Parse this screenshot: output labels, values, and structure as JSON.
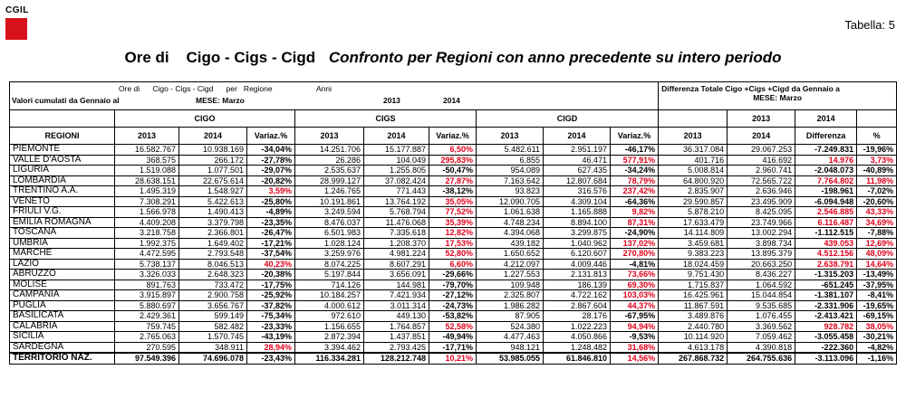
{
  "logo_text": "CGIL",
  "table_label": "Tabella: 5",
  "title_main": "Ore di    Cigo - Cigs - Cigd",
  "title_sub": "Confronto per Regioni con anno precedente su intero periodo",
  "header": {
    "line1": "Ore di      Cigo - Cigs - Cigd      per   Regione",
    "line2a": "Valori cumulati da Gennaio  al",
    "line2b": "MESE: Marzo",
    "anni": "Anni",
    "y2013": "2013",
    "y2014": "2014",
    "diff_title": "Differenza Totale Cigo +Cigs +Cigd da Gennaio a",
    "diff_mese": "MESE: Marzo",
    "regioni": "REGIONI",
    "cigo": "CIGO",
    "cigs": "CIGS",
    "cigd": "CIGD",
    "variaz": "Variaz.%",
    "differenza": "Differenza",
    "pct": "%"
  },
  "rows": [
    {
      "r": "PIEMONTE",
      "v": [
        "16.582.767",
        "10.938.169",
        "-34,04%",
        "14.251.706",
        "15.177.887",
        "6,50%",
        "5.482.611",
        "2.951.197",
        "-46,17%",
        "36.317.084",
        "29.067.253",
        "-7.249.831",
        "-19,96%"
      ]
    },
    {
      "r": "VALLE D'AOSTA",
      "v": [
        "368.575",
        "266.172",
        "-27,78%",
        "26.286",
        "104.049",
        "295,83%",
        "6.855",
        "46.471",
        "577,91%",
        "401.716",
        "416.692",
        "14.976",
        "3,73%"
      ]
    },
    {
      "r": "LIGURIA",
      "v": [
        "1.519.088",
        "1.077.501",
        "-29,07%",
        "2.535.637",
        "1.255.805",
        "-50,47%",
        "954.089",
        "627.435",
        "-34,24%",
        "5.008.814",
        "2.960.741",
        "-2.048.073",
        "-40,89%"
      ]
    },
    {
      "r": "LOMBARDIA",
      "v": [
        "28.638.151",
        "22.675.614",
        "-20,82%",
        "28.999.127",
        "37.082.424",
        "27,87%",
        "7.163.642",
        "12.807.684",
        "78,79%",
        "64.800.920",
        "72.565.722",
        "7.764.802",
        "11,98%"
      ]
    },
    {
      "r": "TRENTINO A.A.",
      "v": [
        "1.495.319",
        "1.548.927",
        "3,59%",
        "1.246.765",
        "771.443",
        "-38,12%",
        "93.823",
        "316.576",
        "237,42%",
        "2.835.907",
        "2.636.946",
        "-198.961",
        "-7,02%"
      ]
    },
    {
      "r": "VENETO",
      "v": [
        "7.308.291",
        "5.422.613",
        "-25,80%",
        "10.191.861",
        "13.764.192",
        "35,05%",
        "12.090.705",
        "4.309.104",
        "-64,36%",
        "29.590.857",
        "23.495.909",
        "-6.094.948",
        "-20,60%"
      ]
    },
    {
      "r": "FRIULI V.G.",
      "v": [
        "1.566.978",
        "1.490.413",
        "-4,89%",
        "3.249.594",
        "5.768.794",
        "77,52%",
        "1.061.638",
        "1.165.888",
        "9,82%",
        "5.878.210",
        "8.425.095",
        "2.546.885",
        "43,33%"
      ]
    },
    {
      "r": "EMILIA ROMAGNA",
      "v": [
        "4.409.208",
        "3.379.798",
        "-23,35%",
        "8.476.037",
        "11.476.068",
        "35,39%",
        "4.748.234",
        "8.894.100",
        "87,31%",
        "17.633.479",
        "23.749.966",
        "6.116.487",
        "34,69%"
      ]
    },
    {
      "r": "TOSCANA",
      "v": [
        "3.218.758",
        "2.366.801",
        "-26,47%",
        "6.501.983",
        "7.335.618",
        "12,82%",
        "4.394.068",
        "3.299.875",
        "-24,90%",
        "14.114.809",
        "13.002.294",
        "-1.112.515",
        "-7,88%"
      ]
    },
    {
      "r": "UMBRIA",
      "v": [
        "1.992.375",
        "1.649.402",
        "-17,21%",
        "1.028.124",
        "1.208.370",
        "17,53%",
        "439.182",
        "1.040.962",
        "137,02%",
        "3.459.681",
        "3.898.734",
        "439.053",
        "12,69%"
      ]
    },
    {
      "r": "MARCHE",
      "v": [
        "4.472.595",
        "2.793.548",
        "-37,54%",
        "3.259.976",
        "4.981.224",
        "52,80%",
        "1.650.652",
        "6.120.607",
        "270,80%",
        "9.383.223",
        "13.895.379",
        "4.512.156",
        "48,09%"
      ]
    },
    {
      "r": "LAZIO",
      "v": [
        "5.738.137",
        "8.046.513",
        "40,23%",
        "8.074.225",
        "8.607.291",
        "6,60%",
        "4.212.097",
        "4.009.446",
        "-4,81%",
        "18.024.459",
        "20.663.250",
        "2.638.791",
        "14,64%"
      ]
    },
    {
      "r": "ABRUZZO",
      "v": [
        "3.326.033",
        "2.648.323",
        "-20,38%",
        "5.197.844",
        "3.656.091",
        "-29,66%",
        "1.227.553",
        "2.131.813",
        "73,66%",
        "9.751.430",
        "8.436.227",
        "-1.315.203",
        "-13,49%"
      ]
    },
    {
      "r": "MOLISE",
      "v": [
        "891.763",
        "733.472",
        "-17,75%",
        "714.126",
        "144.981",
        "-79,70%",
        "109.948",
        "186.139",
        "69,30%",
        "1.715.837",
        "1.064.592",
        "-651.245",
        "-37,95%"
      ]
    },
    {
      "r": "CAMPANIA",
      "v": [
        "3.915.897",
        "2.900.758",
        "-25,92%",
        "10.184.257",
        "7.421.934",
        "-27,12%",
        "2.325.807",
        "4.722.162",
        "103,03%",
        "16.425.961",
        "15.044.854",
        "-1.381.107",
        "-8,41%"
      ]
    },
    {
      "r": "PUGLIA",
      "v": [
        "5.880.697",
        "3.656.767",
        "-37,82%",
        "4.000.612",
        "3.011.314",
        "-24,73%",
        "1.986.282",
        "2.867.604",
        "44,37%",
        "11.867.591",
        "9.535.685",
        "-2.331.906",
        "-19,65%"
      ]
    },
    {
      "r": "BASILICATA",
      "v": [
        "2.429.361",
        "599.149",
        "-75,34%",
        "972.610",
        "449.130",
        "-53,82%",
        "87.905",
        "28.176",
        "-67,95%",
        "3.489.876",
        "1.076.455",
        "-2.413.421",
        "-69,15%"
      ]
    },
    {
      "r": "CALABRIA",
      "v": [
        "759.745",
        "582.482",
        "-23,33%",
        "1.156.655",
        "1.764.857",
        "52,58%",
        "524.380",
        "1.022.223",
        "94,94%",
        "2.440.780",
        "3.369.562",
        "928.782",
        "38,05%"
      ]
    },
    {
      "r": "SICILIA",
      "v": [
        "2.765.063",
        "1.570.745",
        "-43,19%",
        "2.872.394",
        "1.437.851",
        "-49,94%",
        "4.477.463",
        "4.050.866",
        "-9,53%",
        "10.114.920",
        "7.059.462",
        "-3.055.458",
        "-30,21%"
      ]
    },
    {
      "r": "SARDEGNA",
      "v": [
        "270.595",
        "348.911",
        "28,94%",
        "3.394.462",
        "2.793.425",
        "-17,71%",
        "948.121",
        "1.248.482",
        "31,68%",
        "4.613.178",
        "4.390.818",
        "-222.360",
        "-4,82%"
      ]
    }
  ],
  "total": {
    "r": "TERRITORIO NAZ.",
    "v": [
      "97.549.396",
      "74.696.078",
      "-23,43%",
      "116.334.281",
      "128.212.748",
      "10,21%",
      "53.985.055",
      "61.846.810",
      "14,56%",
      "267.868.732",
      "264.755.636",
      "-3.113.096",
      "-1,16%"
    ]
  }
}
